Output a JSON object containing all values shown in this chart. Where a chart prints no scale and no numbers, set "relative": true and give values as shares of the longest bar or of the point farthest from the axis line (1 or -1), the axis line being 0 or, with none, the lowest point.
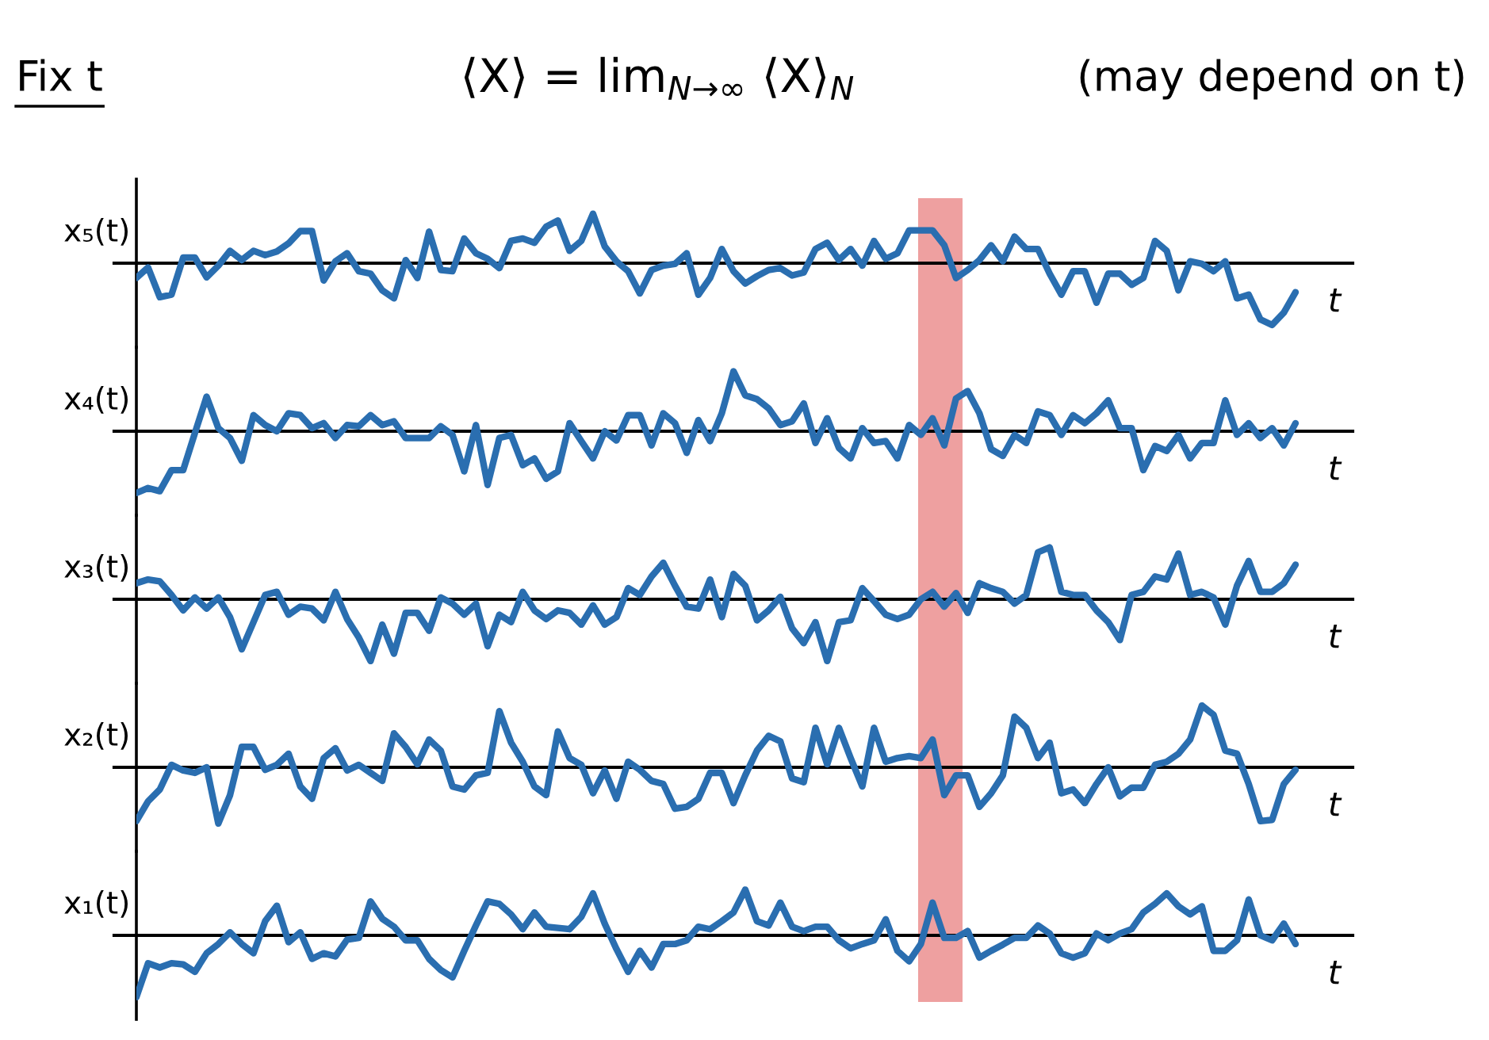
{
  "chart_data": [
    {
      "type": "line",
      "title": "⟨X⟩ = lim$_{N→∞}$ ⟨X⟩$_{N}$",
      "annotations": [
        "Fix t",
        "(may depend on t)"
      ],
      "ylabel": "x₅(t)",
      "xlabel": "t",
      "relative": true,
      "marker": "none",
      "line_style": "solid",
      "categories": [
        null,
        null,
        null,
        null,
        null,
        null,
        null,
        null,
        null,
        null,
        null,
        null,
        null,
        null,
        null,
        null,
        null,
        null,
        null,
        null,
        null,
        null,
        null,
        null,
        null,
        null,
        null,
        null,
        null,
        null,
        null,
        null,
        null,
        null,
        null,
        null,
        null,
        null,
        null,
        null,
        null,
        null,
        null,
        null,
        null,
        null,
        null,
        null,
        null,
        null,
        null,
        null,
        null,
        null,
        null,
        null,
        null,
        null,
        null,
        null,
        null,
        null,
        null,
        null,
        null,
        null,
        null,
        null,
        null,
        null,
        null,
        null,
        null,
        null,
        null,
        null,
        null,
        null,
        null,
        null,
        null,
        null,
        null,
        null,
        null,
        null,
        null,
        null,
        null,
        null,
        null,
        null,
        null,
        null,
        null,
        null,
        null,
        null,
        null,
        null
      ],
      "series": [
        {
          "color": "#2a6eb0",
          "values": [
            -0.24,
            -0.07,
            -0.55,
            -0.51,
            0.09,
            0.09,
            -0.23,
            -0.04,
            0.2,
            0.05,
            0.2,
            0.13,
            0.19,
            0.32,
            0.52,
            0.52,
            -0.28,
            0.03,
            0.16,
            -0.13,
            -0.17,
            -0.44,
            -0.57,
            0.05,
            -0.24,
            0.51,
            -0.11,
            -0.13,
            0.4,
            0.16,
            0.07,
            -0.08,
            0.36,
            0.4,
            0.33,
            0.59,
            0.69,
            0.2,
            0.36,
            0.8,
            0.27,
            0.03,
            -0.13,
            -0.49,
            -0.11,
            -0.04,
            -0.01,
            0.16,
            -0.51,
            -0.24,
            0.23,
            -0.13,
            -0.33,
            -0.21,
            -0.11,
            -0.08,
            -0.2,
            -0.15,
            0.23,
            0.33,
            0.05,
            0.23,
            -0.04,
            0.36,
            0.07,
            0.16,
            0.53,
            0.53,
            0.53,
            0.29,
            -0.24,
            -0.11,
            0.05,
            0.29,
            0.03,
            0.43,
            0.23,
            0.23,
            -0.17,
            -0.51,
            -0.13,
            -0.13,
            -0.64,
            -0.17,
            -0.17,
            -0.35,
            -0.24,
            0.36,
            0.2,
            -0.44,
            0.03,
            -0.01,
            -0.13,
            0.03,
            -0.57,
            -0.51,
            -0.91,
            -1,
            -0.8,
            -0.47
          ]
        }
      ]
    },
    {
      "type": "line",
      "ylabel": "x₄(t)",
      "xlabel": "t",
      "relative": true,
      "marker": "none",
      "line_style": "solid",
      "categories": [
        null,
        null,
        null,
        null,
        null,
        null,
        null,
        null,
        null,
        null,
        null,
        null,
        null,
        null,
        null,
        null,
        null,
        null,
        null,
        null,
        null,
        null,
        null,
        null,
        null,
        null,
        null,
        null,
        null,
        null,
        null,
        null,
        null,
        null,
        null,
        null,
        null,
        null,
        null,
        null,
        null,
        null,
        null,
        null,
        null,
        null,
        null,
        null,
        null,
        null,
        null,
        null,
        null,
        null,
        null,
        null,
        null,
        null,
        null,
        null,
        null,
        null,
        null,
        null,
        null,
        null,
        null,
        null,
        null,
        null,
        null,
        null,
        null,
        null,
        null,
        null,
        null,
        null,
        null,
        null,
        null,
        null,
        null,
        null,
        null,
        null,
        null,
        null,
        null,
        null,
        null,
        null,
        null,
        null,
        null,
        null,
        null,
        null,
        null,
        null
      ],
      "series": [
        {
          "color": "#2a6eb0",
          "values": [
            -1,
            -0.92,
            -0.97,
            -0.63,
            -0.63,
            -0.03,
            0.56,
            0.05,
            -0.11,
            -0.48,
            0.26,
            0.1,
            0,
            0.29,
            0.26,
            0.05,
            0.13,
            -0.11,
            0.1,
            0.08,
            0.26,
            0.1,
            0.16,
            -0.11,
            -0.11,
            -0.11,
            0.08,
            -0.06,
            -0.65,
            0.1,
            -0.87,
            -0.11,
            -0.06,
            -0.55,
            -0.44,
            -0.77,
            -0.65,
            0.13,
            -0.16,
            -0.44,
            0,
            -0.15,
            0.26,
            0.26,
            -0.23,
            0.29,
            0.13,
            -0.35,
            0.18,
            -0.16,
            0.29,
            0.97,
            0.58,
            0.52,
            0.37,
            0.1,
            0.16,
            0.45,
            -0.19,
            0.21,
            -0.27,
            -0.44,
            0.05,
            -0.19,
            -0.16,
            -0.44,
            0.1,
            -0.06,
            0.21,
            -0.23,
            0.53,
            0.65,
            0.29,
            -0.29,
            -0.4,
            -0.06,
            -0.19,
            0.32,
            0.26,
            -0.06,
            0.26,
            0.13,
            0.29,
            0.5,
            0.05,
            0.05,
            -0.63,
            -0.24,
            -0.32,
            -0.06,
            -0.44,
            -0.19,
            -0.19,
            0.5,
            -0.06,
            0.13,
            -0.11,
            0.05,
            -0.23,
            0.13
          ]
        }
      ]
    },
    {
      "type": "line",
      "ylabel": "x₃(t)",
      "xlabel": "t",
      "relative": true,
      "marker": "none",
      "line_style": "solid",
      "categories": [
        null,
        null,
        null,
        null,
        null,
        null,
        null,
        null,
        null,
        null,
        null,
        null,
        null,
        null,
        null,
        null,
        null,
        null,
        null,
        null,
        null,
        null,
        null,
        null,
        null,
        null,
        null,
        null,
        null,
        null,
        null,
        null,
        null,
        null,
        null,
        null,
        null,
        null,
        null,
        null,
        null,
        null,
        null,
        null,
        null,
        null,
        null,
        null,
        null,
        null,
        null,
        null,
        null,
        null,
        null,
        null,
        null,
        null,
        null,
        null,
        null,
        null,
        null,
        null,
        null,
        null,
        null,
        null,
        null,
        null,
        null,
        null,
        null,
        null,
        null,
        null,
        null,
        null,
        null,
        null,
        null,
        null,
        null,
        null,
        null,
        null,
        null,
        null,
        null,
        null,
        null,
        null,
        null,
        null,
        null,
        null,
        null,
        null,
        null,
        null
      ],
      "series": [
        {
          "color": "#2a6eb0",
          "values": [
            0.26,
            0.32,
            0.29,
            0.07,
            -0.18,
            0.03,
            -0.15,
            0.03,
            -0.29,
            -0.81,
            -0.37,
            0.07,
            0.12,
            -0.25,
            -0.12,
            -0.15,
            -0.34,
            0.12,
            -0.32,
            -0.62,
            -1,
            -0.41,
            -0.88,
            -0.22,
            -0.22,
            -0.51,
            0.03,
            -0.07,
            -0.25,
            -0.07,
            -0.76,
            -0.25,
            -0.37,
            0.12,
            -0.18,
            -0.32,
            -0.18,
            -0.22,
            -0.41,
            -0.1,
            -0.41,
            -0.29,
            0.18,
            0.07,
            0.37,
            0.59,
            0.22,
            -0.12,
            -0.15,
            0.32,
            -0.29,
            0.41,
            0.22,
            -0.34,
            -0.18,
            0.04,
            -0.47,
            -0.71,
            -0.37,
            -1,
            -0.37,
            -0.34,
            0.18,
            -0.03,
            -0.25,
            -0.32,
            -0.25,
            0,
            0.12,
            -0.12,
            0.1,
            -0.22,
            0.26,
            0.18,
            0.12,
            -0.07,
            0.07,
            0.76,
            0.84,
            0.12,
            0.07,
            0.07,
            -0.18,
            -0.37,
            -0.66,
            0.07,
            0.12,
            0.37,
            0.32,
            0.74,
            0.07,
            0.12,
            0.03,
            -0.41,
            0.22,
            0.62,
            0.12,
            0.12,
            0.26,
            0.56
          ]
        }
      ]
    },
    {
      "type": "line",
      "ylabel": "x₂(t)",
      "xlabel": "t",
      "relative": true,
      "marker": "none",
      "line_style": "solid",
      "categories": [
        null,
        null,
        null,
        null,
        null,
        null,
        null,
        null,
        null,
        null,
        null,
        null,
        null,
        null,
        null,
        null,
        null,
        null,
        null,
        null,
        null,
        null,
        null,
        null,
        null,
        null,
        null,
        null,
        null,
        null,
        null,
        null,
        null,
        null,
        null,
        null,
        null,
        null,
        null,
        null,
        null,
        null,
        null,
        null,
        null,
        null,
        null,
        null,
        null,
        null,
        null,
        null,
        null,
        null,
        null,
        null,
        null,
        null,
        null,
        null,
        null,
        null,
        null,
        null,
        null,
        null,
        null,
        null,
        null,
        null,
        null,
        null,
        null,
        null,
        null,
        null,
        null,
        null,
        null,
        null,
        null,
        null,
        null,
        null,
        null,
        null,
        null,
        null,
        null,
        null,
        null,
        null,
        null,
        null,
        null,
        null,
        null,
        null,
        null,
        null
      ],
      "series": [
        {
          "color": "#2a6eb0",
          "values": [
            -0.87,
            -0.55,
            -0.36,
            0.04,
            -0.05,
            -0.09,
            0,
            -0.91,
            -0.45,
            0.33,
            0.33,
            -0.04,
            0.04,
            0.22,
            -0.31,
            -0.51,
            0.15,
            0.31,
            -0.05,
            0.04,
            -0.09,
            -0.22,
            0.55,
            0.33,
            0.05,
            0.45,
            0.27,
            -0.31,
            -0.36,
            -0.13,
            -0.09,
            0.91,
            0.4,
            0.09,
            -0.31,
            -0.45,
            0.58,
            0.15,
            0.04,
            -0.42,
            -0.05,
            -0.51,
            0.09,
            -0.04,
            -0.22,
            -0.27,
            -0.67,
            -0.64,
            -0.51,
            -0.09,
            -0.09,
            -0.58,
            -0.13,
            0.27,
            0.51,
            0.42,
            -0.18,
            -0.24,
            0.64,
            0.05,
            0.64,
            0.15,
            -0.31,
            0.64,
            0.09,
            0.15,
            0.18,
            0.15,
            0.45,
            -0.45,
            -0.13,
            -0.13,
            -0.64,
            -0.42,
            -0.13,
            0.82,
            0.64,
            0.15,
            0.4,
            -0.42,
            -0.36,
            -0.58,
            -0.27,
            0,
            -0.47,
            -0.33,
            -0.33,
            0.04,
            0.09,
            0.22,
            0.45,
            1,
            0.85,
            0.27,
            0.22,
            -0.27,
            -0.87,
            -0.85,
            -0.27,
            -0.04
          ]
        }
      ]
    },
    {
      "type": "line",
      "ylabel": "x₁(t)",
      "xlabel": "t",
      "relative": true,
      "marker": "none",
      "line_style": "solid",
      "categories": [
        null,
        null,
        null,
        null,
        null,
        null,
        null,
        null,
        null,
        null,
        null,
        null,
        null,
        null,
        null,
        null,
        null,
        null,
        null,
        null,
        null,
        null,
        null,
        null,
        null,
        null,
        null,
        null,
        null,
        null,
        null,
        null,
        null,
        null,
        null,
        null,
        null,
        null,
        null,
        null,
        null,
        null,
        null,
        null,
        null,
        null,
        null,
        null,
        null,
        null,
        null,
        null,
        null,
        null,
        null,
        null,
        null,
        null,
        null,
        null,
        null,
        null,
        null,
        null,
        null,
        null,
        null,
        null,
        null,
        null,
        null,
        null,
        null,
        null,
        null,
        null,
        null,
        null,
        null,
        null,
        null,
        null,
        null,
        null,
        null,
        null,
        null,
        null,
        null,
        null,
        null,
        null,
        null,
        null,
        null,
        null,
        null,
        null,
        null,
        null
      ],
      "series": [
        {
          "color": "#2a6eb0",
          "values": [
            -1,
            -0.45,
            -0.52,
            -0.45,
            -0.47,
            -0.59,
            -0.29,
            -0.14,
            0.05,
            -0.14,
            -0.29,
            0.23,
            0.48,
            -0.11,
            0.05,
            -0.38,
            -0.29,
            -0.34,
            -0.07,
            -0.04,
            0.55,
            0.27,
            0.14,
            -0.08,
            -0.08,
            -0.38,
            -0.56,
            -0.68,
            -0.25,
            0.16,
            0.55,
            0.51,
            0.34,
            0.1,
            0.37,
            0.14,
            0.12,
            0.1,
            0.3,
            0.68,
            0.19,
            -0.22,
            -0.59,
            -0.25,
            -0.52,
            -0.14,
            -0.14,
            -0.08,
            0.14,
            0.1,
            0.23,
            0.37,
            0.74,
            0.23,
            0.16,
            0.53,
            0.14,
            0.07,
            0.14,
            0.14,
            -0.08,
            -0.21,
            -0.14,
            -0.08,
            0.26,
            -0.25,
            -0.42,
            -0.14,
            0.53,
            -0.04,
            -0.04,
            0.07,
            -0.36,
            -0.25,
            -0.15,
            -0.04,
            -0.04,
            0.16,
            0.03,
            -0.29,
            -0.36,
            -0.29,
            0.03,
            -0.08,
            0.03,
            0.1,
            0.37,
            0.51,
            0.68,
            0.47,
            0.34,
            0.47,
            -0.25,
            -0.25,
            -0.08,
            0.58,
            0,
            -0.08,
            0.19,
            -0.14
          ]
        }
      ]
    }
  ]
}
